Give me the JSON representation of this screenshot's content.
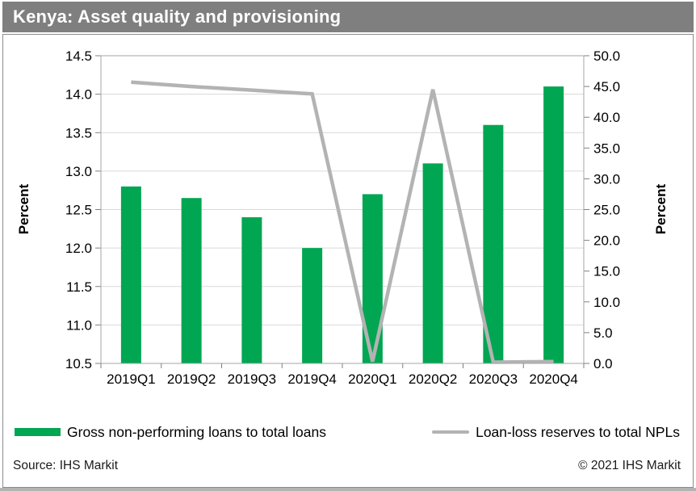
{
  "header": {
    "title": "Kenya: Asset quality and provisioning"
  },
  "footer": {
    "source": "Source: IHS Markit",
    "copyright": "© 2021 IHS Markit"
  },
  "colors": {
    "title_bar_bg": "#7f7f7f",
    "title_text": "#ffffff",
    "bar_green": "#00A651",
    "line_gray": "#b3b3b3",
    "gridline": "#d9d9d9",
    "plot_border": "#a6a6a6",
    "tick": "#7f7f7f",
    "tick_label": "#000000"
  },
  "chart_data": {
    "type": "bar",
    "subtype": "bar+line dual-axis combo",
    "categories": [
      "2019Q1",
      "2019Q2",
      "2019Q3",
      "2019Q4",
      "2020Q1",
      "2020Q2",
      "2020Q3",
      "2020Q4"
    ],
    "series": [
      {
        "name": "Gross non-performing loans to total loans",
        "type": "bar",
        "axis": "left",
        "color": "#00A651",
        "values": [
          12.8,
          12.65,
          12.4,
          12.0,
          12.7,
          13.1,
          13.6,
          14.1
        ]
      },
      {
        "name": "Loan-loss reserves to total NPLs",
        "type": "line",
        "axis": "right",
        "color": "#b3b3b3",
        "values": [
          45.7,
          45.0,
          44.4,
          43.8,
          0.3,
          44.5,
          0.2,
          0.3
        ]
      }
    ],
    "left_axis": {
      "label": "Percent",
      "min": 10.5,
      "max": 14.5,
      "step": 0.5
    },
    "right_axis": {
      "label": "Percent",
      "min": 0.0,
      "max": 50.0,
      "step": 5.0
    },
    "grid": "horizontal gridlines at left-axis 0.5 steps",
    "legend_position": "bottom"
  }
}
